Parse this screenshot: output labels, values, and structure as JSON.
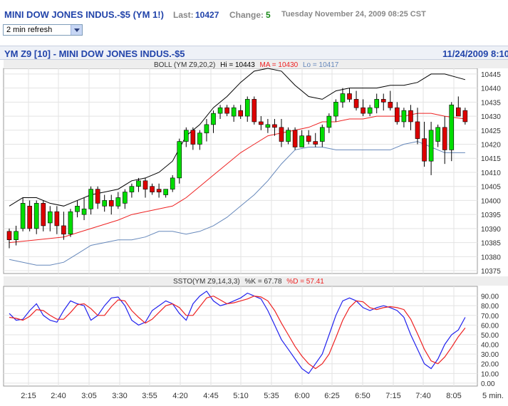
{
  "header": {
    "title": "MINI DOW JONES INDUS.-$5 (YM 1!)",
    "last_label": "Last:",
    "last_value": "10427",
    "change_label": "Change:",
    "change_value": "5",
    "datetime": "Tuesday November 24, 2009 08:25 CST",
    "refresh_value": "2 min refresh"
  },
  "chart_header": {
    "left": "YM Z9 [10] - MINI DOW JONES INDUS.-$5",
    "right": "11/24/2009 8:10"
  },
  "colors": {
    "up": "#00dd00",
    "down": "#dd0000",
    "ma": "#ee2222",
    "upper_band": "#000000",
    "lower_band": "#6688bb",
    "k_line": "#2222ee",
    "d_line": "#ee2222",
    "grid": "#e3e3e3",
    "link": "#2244aa"
  },
  "chart_data": [
    {
      "type": "candlestick",
      "legend": {
        "prefix": "BOLL (YM Z9,20,2)",
        "hi_label": "Hi = 10443",
        "ma_label": "MA = 10430",
        "lo_label": "Lo = 10417"
      },
      "x_tick_labels": [
        "2:15",
        "2:40",
        "3:05",
        "3:30",
        "3:55",
        "4:20",
        "4:45",
        "5:10",
        "5:35",
        "6:00",
        "6:25",
        "6:50",
        "7:15",
        "7:40",
        "8:05",
        "5 min."
      ],
      "y_ticks": [
        10445,
        10440,
        10435,
        10430,
        10425,
        10420,
        10415,
        10410,
        10405,
        10400,
        10395,
        10390,
        10385,
        10380,
        10375
      ],
      "ylim": [
        10374,
        10447
      ],
      "grid": true,
      "candles": [
        [
          10389,
          10390,
          10383,
          10386
        ],
        [
          10386,
          10391,
          10384,
          10389
        ],
        [
          10390,
          10401,
          10389,
          10399
        ],
        [
          10398,
          10400,
          10389,
          10390
        ],
        [
          10390,
          10400,
          10388,
          10399
        ],
        [
          10399,
          10400,
          10389,
          10391
        ],
        [
          10392,
          10398,
          10389,
          10396
        ],
        [
          10396,
          10398,
          10388,
          10391
        ],
        [
          10391,
          10396,
          10386,
          10388
        ],
        [
          10388,
          10397,
          10387,
          10396
        ],
        [
          10396,
          10400,
          10394,
          10398
        ],
        [
          10395,
          10401,
          10393,
          10397
        ],
        [
          10397,
          10405,
          10395,
          10404
        ],
        [
          10404,
          10405,
          10397,
          10399
        ],
        [
          10398,
          10402,
          10396,
          10400
        ],
        [
          10400,
          10402,
          10395,
          10398
        ],
        [
          10398,
          10403,
          10397,
          10401
        ],
        [
          10399,
          10404,
          10397,
          10403
        ],
        [
          10403,
          10406,
          10401,
          10405
        ],
        [
          10405,
          10408,
          10403,
          10407
        ],
        [
          10407,
          10408,
          10401,
          10404
        ],
        [
          10405,
          10406,
          10402,
          10403
        ],
        [
          10404,
          10406,
          10401,
          10403
        ],
        [
          10402,
          10404,
          10401,
          10404
        ],
        [
          10404,
          10409,
          10403,
          10408
        ],
        [
          10408,
          10422,
          10406,
          10421
        ],
        [
          10421,
          10426,
          10419,
          10425
        ],
        [
          10425,
          10426,
          10418,
          10420
        ],
        [
          10420,
          10425,
          10418,
          10424
        ],
        [
          10424,
          10429,
          10421,
          10427
        ],
        [
          10427,
          10432,
          10424,
          10431
        ],
        [
          10431,
          10434,
          10429,
          10433
        ],
        [
          10433,
          10434,
          10430,
          10431
        ],
        [
          10430,
          10434,
          10428,
          10433
        ],
        [
          10432,
          10434,
          10429,
          10430
        ],
        [
          10430,
          10437,
          10428,
          10436
        ],
        [
          10436,
          10437,
          10427,
          10428
        ],
        [
          10428,
          10430,
          10425,
          10427
        ],
        [
          10426,
          10429,
          10424,
          10427
        ],
        [
          10427,
          10429,
          10423,
          10426
        ],
        [
          10426,
          10429,
          10419,
          10421
        ],
        [
          10421,
          10426,
          10420,
          10425
        ],
        [
          10425,
          10426,
          10418,
          10419
        ],
        [
          10419,
          10425,
          10419,
          10423
        ],
        [
          10423,
          10425,
          10420,
          10421
        ],
        [
          10421,
          10424,
          10419,
          10420
        ],
        [
          10421,
          10427,
          10419,
          10426
        ],
        [
          10426,
          10431,
          10424,
          10430
        ],
        [
          10430,
          10436,
          10428,
          10435
        ],
        [
          10435,
          10440,
          10433,
          10438
        ],
        [
          10438,
          10440,
          10435,
          10436
        ],
        [
          10436,
          10439,
          10432,
          10433
        ],
        [
          10433,
          10436,
          10430,
          10431
        ],
        [
          10431,
          10434,
          10430,
          10433
        ],
        [
          10433,
          10438,
          10431,
          10436
        ],
        [
          10436,
          10438,
          10432,
          10435
        ],
        [
          10435,
          10439,
          10432,
          10433
        ],
        [
          10433,
          10435,
          10427,
          10428
        ],
        [
          10428,
          10433,
          10426,
          10432
        ],
        [
          10432,
          10434,
          10425,
          10428
        ],
        [
          10428,
          10433,
          10420,
          10422
        ],
        [
          10422,
          10428,
          10412,
          10414
        ],
        [
          10414,
          10428,
          10409,
          10425
        ],
        [
          10421,
          10427,
          10419,
          10426
        ],
        [
          10426,
          10430,
          10413,
          10418
        ],
        [
          10418,
          10435,
          10414,
          10434
        ],
        [
          10433,
          10437,
          10430,
          10430
        ],
        [
          10432,
          10433,
          10427,
          10428
        ]
      ],
      "upper_band": [
        [
          0,
          10398
        ],
        [
          2,
          10401
        ],
        [
          4,
          10401
        ],
        [
          6,
          10399
        ],
        [
          8,
          10398
        ],
        [
          10,
          10400
        ],
        [
          12,
          10402
        ],
        [
          14,
          10403
        ],
        [
          16,
          10404
        ],
        [
          18,
          10407
        ],
        [
          20,
          10408
        ],
        [
          22,
          10410
        ],
        [
          24,
          10414
        ],
        [
          26,
          10423
        ],
        [
          28,
          10427
        ],
        [
          30,
          10433
        ],
        [
          32,
          10437
        ],
        [
          34,
          10442
        ],
        [
          36,
          10446
        ],
        [
          38,
          10447
        ],
        [
          40,
          10446
        ],
        [
          42,
          10441
        ],
        [
          44,
          10437
        ],
        [
          46,
          10436
        ],
        [
          48,
          10439
        ],
        [
          50,
          10440
        ],
        [
          52,
          10440
        ],
        [
          54,
          10440
        ],
        [
          56,
          10441
        ],
        [
          58,
          10441
        ],
        [
          60,
          10442
        ],
        [
          62,
          10445
        ],
        [
          64,
          10445
        ],
        [
          67,
          10443
        ]
      ],
      "middle_band": [
        [
          0,
          10385
        ],
        [
          4,
          10386
        ],
        [
          8,
          10387
        ],
        [
          12,
          10390
        ],
        [
          16,
          10393
        ],
        [
          18,
          10395
        ],
        [
          20,
          10396
        ],
        [
          22,
          10397
        ],
        [
          24,
          10398
        ],
        [
          26,
          10401
        ],
        [
          28,
          10405
        ],
        [
          30,
          10409
        ],
        [
          32,
          10413
        ],
        [
          34,
          10417
        ],
        [
          36,
          10420
        ],
        [
          38,
          10423
        ],
        [
          40,
          10424
        ],
        [
          42,
          10425
        ],
        [
          44,
          10426
        ],
        [
          46,
          10428
        ],
        [
          48,
          10428
        ],
        [
          50,
          10429
        ],
        [
          52,
          10429
        ],
        [
          54,
          10430
        ],
        [
          56,
          10430
        ],
        [
          58,
          10430
        ],
        [
          60,
          10431
        ],
        [
          62,
          10431
        ],
        [
          64,
          10430
        ],
        [
          67,
          10429
        ]
      ],
      "lower_band": [
        [
          0,
          10379
        ],
        [
          2,
          10378
        ],
        [
          4,
          10377
        ],
        [
          6,
          10377
        ],
        [
          8,
          10378
        ],
        [
          10,
          10381
        ],
        [
          12,
          10384
        ],
        [
          14,
          10385
        ],
        [
          16,
          10386
        ],
        [
          18,
          10386
        ],
        [
          20,
          10387
        ],
        [
          22,
          10389
        ],
        [
          24,
          10389
        ],
        [
          26,
          10388
        ],
        [
          28,
          10389
        ],
        [
          30,
          10391
        ],
        [
          32,
          10394
        ],
        [
          34,
          10398
        ],
        [
          36,
          10402
        ],
        [
          38,
          10407
        ],
        [
          40,
          10413
        ],
        [
          42,
          10418
        ],
        [
          44,
          10419
        ],
        [
          46,
          10419
        ],
        [
          48,
          10418
        ],
        [
          50,
          10418
        ],
        [
          52,
          10418
        ],
        [
          54,
          10418
        ],
        [
          56,
          10418
        ],
        [
          58,
          10420
        ],
        [
          60,
          10421
        ],
        [
          62,
          10419
        ],
        [
          64,
          10417
        ],
        [
          67,
          10417
        ]
      ]
    },
    {
      "type": "line",
      "legend": {
        "prefix": "SSTO(YM Z9,14,3,3)",
        "k_label": "%K = 67.78",
        "d_label": "%D = 57.41"
      },
      "y_ticks": [
        90,
        80,
        70,
        60,
        50,
        40,
        30,
        20,
        10,
        0
      ],
      "y_tick_labels": [
        "90.00",
        "80.00",
        "70.00",
        "60.00",
        "50.00",
        "40.00",
        "30.00",
        "20.00",
        "10.00",
        "0.00"
      ],
      "ylim": [
        -3,
        100
      ],
      "series": [
        {
          "name": "%K",
          "values": [
            72,
            65,
            66,
            75,
            82,
            70,
            65,
            63,
            75,
            85,
            82,
            80,
            65,
            70,
            80,
            88,
            89,
            80,
            65,
            60,
            63,
            75,
            80,
            85,
            82,
            72,
            65,
            82,
            90,
            95,
            85,
            80,
            82,
            85,
            88,
            93,
            90,
            87,
            75,
            60,
            45,
            35,
            25,
            15,
            10,
            20,
            30,
            50,
            70,
            85,
            88,
            85,
            78,
            75,
            78,
            80,
            78,
            75,
            68,
            50,
            35,
            20,
            15,
            25,
            40,
            50,
            55,
            68
          ]
        },
        {
          "name": "%D",
          "values": [
            68,
            67,
            65,
            69,
            76,
            75,
            70,
            66,
            66,
            73,
            81,
            82,
            77,
            70,
            70,
            79,
            86,
            85,
            75,
            68,
            62,
            66,
            73,
            80,
            82,
            78,
            70,
            70,
            79,
            88,
            90,
            86,
            82,
            83,
            85,
            87,
            90,
            89,
            85,
            75,
            62,
            50,
            38,
            28,
            20,
            15,
            20,
            30,
            47,
            65,
            78,
            85,
            84,
            78,
            76,
            78,
            79,
            78,
            76,
            66,
            51,
            35,
            23,
            20,
            27,
            37,
            48,
            57
          ]
        }
      ]
    }
  ]
}
